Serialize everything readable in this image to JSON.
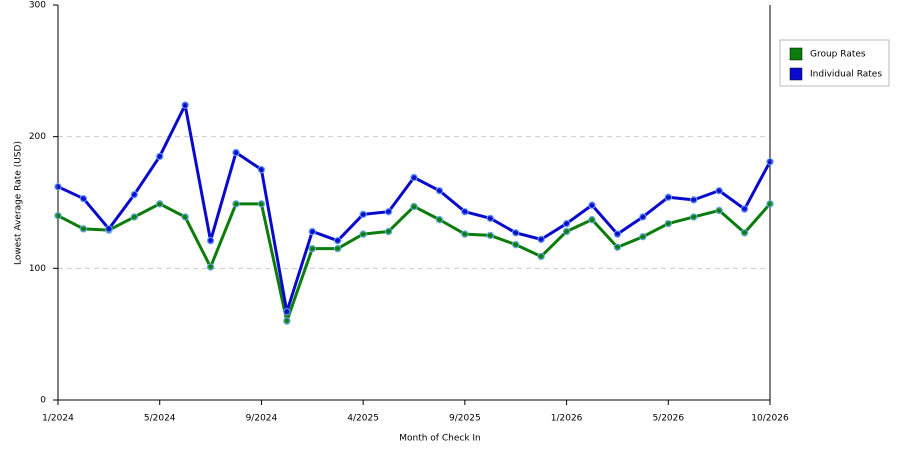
{
  "chart_data": {
    "type": "line",
    "x_label": "Month of Check In",
    "y_label": "Lowest Average Rate (USD)",
    "categories": [
      "1/2024",
      null,
      null,
      null,
      "5/2024",
      null,
      null,
      null,
      "9/2024",
      null,
      null,
      null,
      "4/2025",
      null,
      null,
      null,
      "9/2025",
      null,
      null,
      null,
      "1/2026",
      null,
      null,
      null,
      "5/2026",
      null,
      null,
      null,
      "10/2026"
    ],
    "series": [
      {
        "name": "Group Rates",
        "color": "#0a7d0a",
        "values": [
          140,
          130,
          129,
          139,
          149,
          139,
          101,
          149,
          149,
          60,
          115,
          115,
          126,
          128,
          147,
          137,
          126,
          125,
          118,
          109,
          128,
          137,
          116,
          124,
          134,
          139,
          144,
          127,
          149
        ]
      },
      {
        "name": "Individual Rates",
        "color": "#0a0acc",
        "values": [
          162,
          153,
          130,
          156,
          185,
          224,
          121,
          188,
          175,
          67,
          128,
          121,
          141,
          143,
          169,
          159,
          143,
          138,
          127,
          122,
          134,
          148,
          126,
          139,
          154,
          152,
          159,
          145,
          181
        ]
      }
    ],
    "ylim": [
      0,
      300
    ],
    "yticks": [
      0,
      100,
      200,
      300
    ],
    "grid": true,
    "legend": "right"
  }
}
